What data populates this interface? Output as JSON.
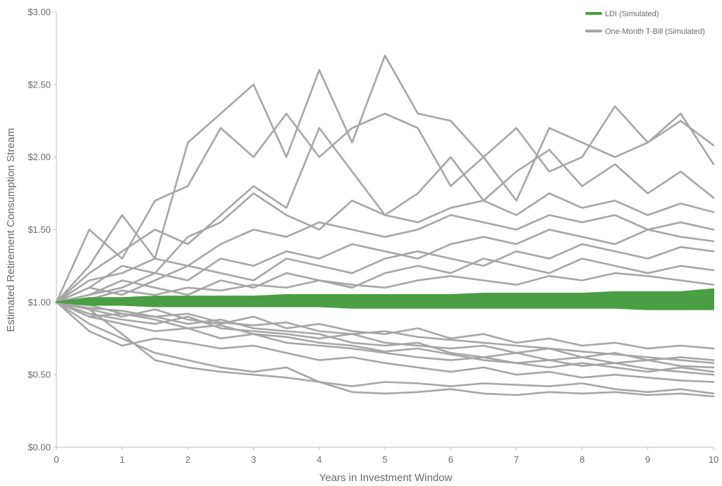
{
  "chart_data": {
    "type": "line",
    "xlabel": "Years in Investment Window",
    "ylabel": "Estimated Retirement Consumption Stream",
    "xlim": [
      0,
      10
    ],
    "ylim": [
      0,
      3
    ],
    "x_ticks": [
      "0",
      "1",
      "2",
      "3",
      "4",
      "5",
      "6",
      "7",
      "8",
      "9",
      "10"
    ],
    "y_ticks": [
      "$0.00",
      "$0.50",
      "$1.00",
      "$1.50",
      "$2.00",
      "$2.50",
      "$3.00"
    ],
    "grid": false,
    "legend_position": "top-right",
    "legend": [
      {
        "label": "LDI (Simulated)",
        "color": "#4a9e44"
      },
      {
        "label": "One-Month T-Bill (Simulated)",
        "color": "#a6a6a6"
      }
    ],
    "x": [
      0,
      0.5,
      1,
      1.5,
      2,
      2.5,
      3,
      3.5,
      4,
      4.5,
      5,
      5.5,
      6,
      6.5,
      7,
      7.5,
      8,
      8.5,
      9,
      9.5,
      10
    ],
    "series": [
      {
        "group": "LDI (Simulated)",
        "band": true,
        "color": "#4a9e44",
        "lower": [
          1.0,
          0.98,
          0.98,
          0.97,
          0.97,
          0.97,
          0.97,
          0.97,
          0.97,
          0.96,
          0.96,
          0.96,
          0.96,
          0.96,
          0.96,
          0.96,
          0.96,
          0.96,
          0.95,
          0.95,
          0.95
        ],
        "upper": [
          1.0,
          1.03,
          1.03,
          1.04,
          1.04,
          1.04,
          1.04,
          1.05,
          1.05,
          1.05,
          1.05,
          1.05,
          1.05,
          1.06,
          1.06,
          1.06,
          1.06,
          1.07,
          1.07,
          1.07,
          1.09
        ]
      },
      {
        "group": "One-Month T-Bill (Simulated)",
        "color": "#a6a6a6",
        "values": [
          1.0,
          1.25,
          1.6,
          1.3,
          2.1,
          2.3,
          2.5,
          2.0,
          2.6,
          2.1,
          2.7,
          2.3,
          2.25,
          2.0,
          2.2,
          1.9,
          2.0,
          2.35,
          2.1,
          2.25,
          2.08
        ]
      },
      {
        "group": "One-Month T-Bill (Simulated)",
        "color": "#a6a6a6",
        "values": [
          1.0,
          1.5,
          1.3,
          1.7,
          1.8,
          2.2,
          2.0,
          2.3,
          2.0,
          2.2,
          2.3,
          2.2,
          1.8,
          2.0,
          1.7,
          2.2,
          2.1,
          2.0,
          2.1,
          2.3,
          1.95
        ]
      },
      {
        "group": "One-Month T-Bill (Simulated)",
        "color": "#a6a6a6",
        "values": [
          1.0,
          1.2,
          1.35,
          1.5,
          1.4,
          1.6,
          1.8,
          1.65,
          2.2,
          1.9,
          1.6,
          1.75,
          2.0,
          1.7,
          1.9,
          2.05,
          1.8,
          1.95,
          1.75,
          1.9,
          1.72
        ]
      },
      {
        "group": "One-Month T-Bill (Simulated)",
        "color": "#a6a6a6",
        "values": [
          1.0,
          1.1,
          1.25,
          1.2,
          1.45,
          1.55,
          1.75,
          1.6,
          1.5,
          1.7,
          1.6,
          1.55,
          1.65,
          1.7,
          1.6,
          1.75,
          1.65,
          1.7,
          1.6,
          1.68,
          1.62
        ]
      },
      {
        "group": "One-Month T-Bill (Simulated)",
        "color": "#a6a6a6",
        "values": [
          1.0,
          1.15,
          1.2,
          1.3,
          1.25,
          1.4,
          1.5,
          1.45,
          1.55,
          1.5,
          1.45,
          1.5,
          1.6,
          1.55,
          1.5,
          1.6,
          1.55,
          1.6,
          1.5,
          1.55,
          1.5
        ]
      },
      {
        "group": "One-Month T-Bill (Simulated)",
        "color": "#a6a6a6",
        "values": [
          1.0,
          1.05,
          1.1,
          1.2,
          1.15,
          1.3,
          1.25,
          1.35,
          1.3,
          1.4,
          1.35,
          1.3,
          1.4,
          1.45,
          1.4,
          1.5,
          1.45,
          1.4,
          1.5,
          1.45,
          1.42
        ]
      },
      {
        "group": "One-Month T-Bill (Simulated)",
        "color": "#a6a6a6",
        "values": [
          1.0,
          1.1,
          1.05,
          1.15,
          1.25,
          1.2,
          1.15,
          1.3,
          1.25,
          1.2,
          1.3,
          1.35,
          1.3,
          1.25,
          1.35,
          1.3,
          1.4,
          1.35,
          1.3,
          1.38,
          1.35
        ]
      },
      {
        "group": "One-Month T-Bill (Simulated)",
        "color": "#a6a6a6",
        "values": [
          1.0,
          1.05,
          1.15,
          1.1,
          1.05,
          1.15,
          1.1,
          1.2,
          1.15,
          1.1,
          1.2,
          1.25,
          1.2,
          1.3,
          1.25,
          1.2,
          1.3,
          1.25,
          1.2,
          1.25,
          1.22
        ]
      },
      {
        "group": "One-Month T-Bill (Simulated)",
        "color": "#a6a6a6",
        "values": [
          1.0,
          1.02,
          1.08,
          1.05,
          1.1,
          1.08,
          1.12,
          1.1,
          1.15,
          1.12,
          1.1,
          1.15,
          1.18,
          1.15,
          1.12,
          1.18,
          1.15,
          1.2,
          1.18,
          1.15,
          1.12
        ]
      },
      {
        "group": "One-Month T-Bill (Simulated)",
        "color": "#a6a6a6",
        "values": [
          1.0,
          0.95,
          0.9,
          0.95,
          0.88,
          0.85,
          0.9,
          0.82,
          0.85,
          0.8,
          0.78,
          0.82,
          0.75,
          0.78,
          0.72,
          0.75,
          0.7,
          0.72,
          0.68,
          0.7,
          0.68
        ]
      },
      {
        "group": "One-Month T-Bill (Simulated)",
        "color": "#a6a6a6",
        "values": [
          1.0,
          0.92,
          0.88,
          0.85,
          0.9,
          0.82,
          0.8,
          0.78,
          0.75,
          0.78,
          0.72,
          0.7,
          0.68,
          0.7,
          0.65,
          0.68,
          0.62,
          0.65,
          0.6,
          0.62,
          0.6
        ]
      },
      {
        "group": "One-Month T-Bill (Simulated)",
        "color": "#a6a6a6",
        "values": [
          1.0,
          0.98,
          0.92,
          0.9,
          0.85,
          0.88,
          0.82,
          0.8,
          0.78,
          0.72,
          0.7,
          0.72,
          0.65,
          0.62,
          0.65,
          0.6,
          0.62,
          0.58,
          0.6,
          0.56,
          0.55
        ]
      },
      {
        "group": "One-Month T-Bill (Simulated)",
        "color": "#a6a6a6",
        "values": [
          1.0,
          0.9,
          0.85,
          0.8,
          0.82,
          0.75,
          0.78,
          0.72,
          0.7,
          0.68,
          0.65,
          0.62,
          0.6,
          0.62,
          0.58,
          0.55,
          0.58,
          0.55,
          0.52,
          0.55,
          0.52
        ]
      },
      {
        "group": "One-Month T-Bill (Simulated)",
        "color": "#a6a6a6",
        "values": [
          1.0,
          0.8,
          0.7,
          0.75,
          0.72,
          0.68,
          0.7,
          0.65,
          0.6,
          0.62,
          0.58,
          0.55,
          0.52,
          0.55,
          0.5,
          0.52,
          0.48,
          0.5,
          0.48,
          0.46,
          0.45
        ]
      },
      {
        "group": "One-Month T-Bill (Simulated)",
        "color": "#a6a6a6",
        "values": [
          1.0,
          0.85,
          0.75,
          0.65,
          0.6,
          0.55,
          0.52,
          0.55,
          0.45,
          0.38,
          0.37,
          0.38,
          0.4,
          0.37,
          0.36,
          0.38,
          0.37,
          0.38,
          0.36,
          0.37,
          0.35
        ]
      },
      {
        "group": "One-Month T-Bill (Simulated)",
        "color": "#a6a6a6",
        "values": [
          1.0,
          0.95,
          0.78,
          0.6,
          0.55,
          0.52,
          0.5,
          0.48,
          0.45,
          0.42,
          0.45,
          0.44,
          0.42,
          0.44,
          0.43,
          0.42,
          0.44,
          0.4,
          0.38,
          0.4,
          0.37
        ]
      },
      {
        "group": "One-Month T-Bill (Simulated)",
        "color": "#a6a6a6",
        "values": [
          1.0,
          0.96,
          0.94,
          0.9,
          0.92,
          0.86,
          0.84,
          0.86,
          0.8,
          0.78,
          0.8,
          0.76,
          0.74,
          0.72,
          0.7,
          0.68,
          0.66,
          0.64,
          0.62,
          0.6,
          0.58
        ]
      },
      {
        "group": "One-Month T-Bill (Simulated)",
        "color": "#a6a6a6",
        "values": [
          1.0,
          0.9,
          0.92,
          0.88,
          0.82,
          0.84,
          0.78,
          0.76,
          0.72,
          0.7,
          0.66,
          0.68,
          0.64,
          0.6,
          0.58,
          0.6,
          0.56,
          0.58,
          0.54,
          0.52,
          0.5
        ]
      }
    ]
  }
}
